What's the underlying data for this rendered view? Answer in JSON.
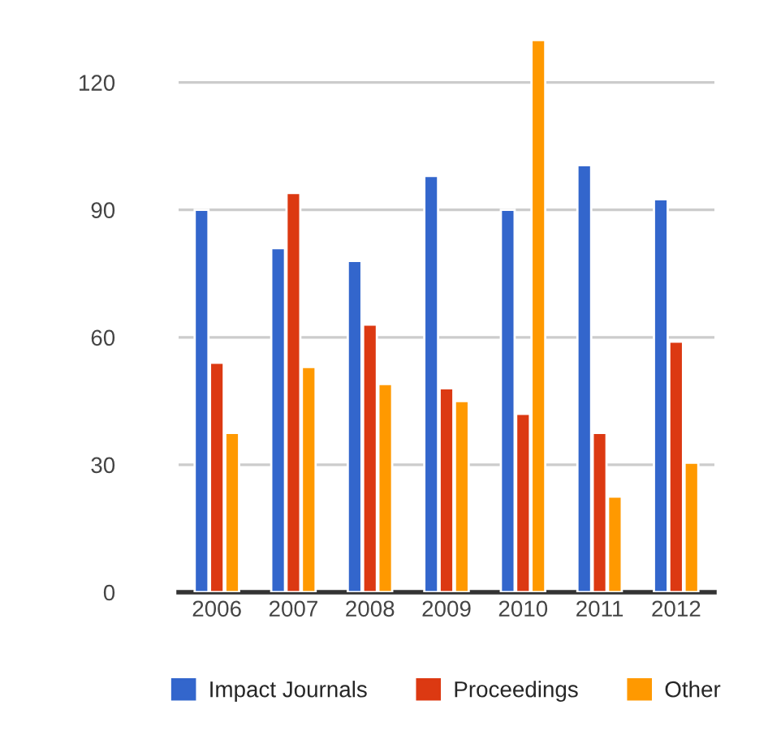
{
  "chart_data": {
    "type": "bar",
    "categories": [
      "2006",
      "2007",
      "2008",
      "2009",
      "2010",
      "2011",
      "2012"
    ],
    "series": [
      {
        "name": "Impact Journals",
        "color": "#3366cc",
        "values": [
          90,
          81,
          78,
          98,
          90,
          100.5,
          92.5
        ]
      },
      {
        "name": "Proceedings",
        "color": "#dc3912",
        "values": [
          54,
          94,
          63,
          48,
          42,
          37.5,
          59
        ]
      },
      {
        "name": "Other",
        "color": "#ff9900",
        "values": [
          37.5,
          53,
          49,
          45,
          130,
          22.5,
          30.5
        ]
      }
    ],
    "ylim": [
      0,
      131
    ],
    "yticks": [
      0,
      30,
      60,
      90,
      120
    ],
    "grid": "y",
    "legend": "bottom"
  }
}
